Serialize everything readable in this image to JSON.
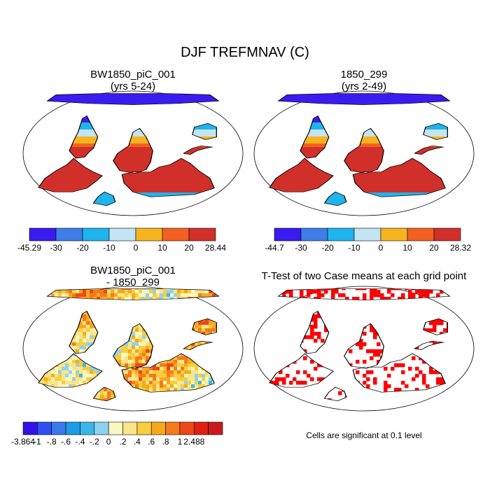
{
  "title": "DJF TREFMNAV (C)",
  "colors": {
    "ocean": "#ffffff",
    "land_outline": "#000000",
    "signif": "#ff0000",
    "abs_scale": [
      "#3a1bf0",
      "#3f7ee8",
      "#1fb4ee",
      "#c3e4f2",
      "#f7b41e",
      "#f26122",
      "#d1302a"
    ],
    "diff_scale": [
      "#3212e6",
      "#2f4ff0",
      "#3a79ec",
      "#1d9be6",
      "#39b6ec",
      "#8ed2f0",
      "#fbf7c2",
      "#f9e68a",
      "#f9cd3e",
      "#f7a91c",
      "#f47b1c",
      "#ec4816",
      "#e31e12",
      "#c81b1e"
    ]
  },
  "panels": [
    {
      "id": "case1",
      "title_line1": "BW1850_piC_001",
      "title_line2": "(yrs 5-24)",
      "colorbar": {
        "type": "colorbar",
        "labels": [
          "-45.29",
          "-30",
          "-20",
          "-10",
          "0",
          "10",
          "20",
          "28.44"
        ],
        "range": [
          -45.29,
          28.44
        ]
      }
    },
    {
      "id": "case2",
      "title_line1": "1850_299",
      "title_line2": "(yrs 2-49)",
      "colorbar": {
        "type": "colorbar",
        "labels": [
          "-44.7",
          "-30",
          "-20",
          "-10",
          "0",
          "10",
          "20",
          "28.32"
        ],
        "range": [
          -44.7,
          28.32
        ]
      }
    },
    {
      "id": "difference",
      "title_line1": "BW1850_piC_001",
      "title_line2": "- 1850_299",
      "colorbar": {
        "type": "colorbar",
        "labels": [
          "-3.864",
          "-1",
          "-.8",
          "-.6",
          "-.4",
          "-.2",
          "0",
          ".2",
          ".4",
          ".6",
          ".8",
          "1",
          "2.488"
        ],
        "range": [
          -3.864,
          2.488
        ]
      }
    },
    {
      "id": "ttest",
      "title_line1": "T-Test of two Case means at each grid point",
      "note": "Cells are significant at 0.1 level"
    }
  ]
}
